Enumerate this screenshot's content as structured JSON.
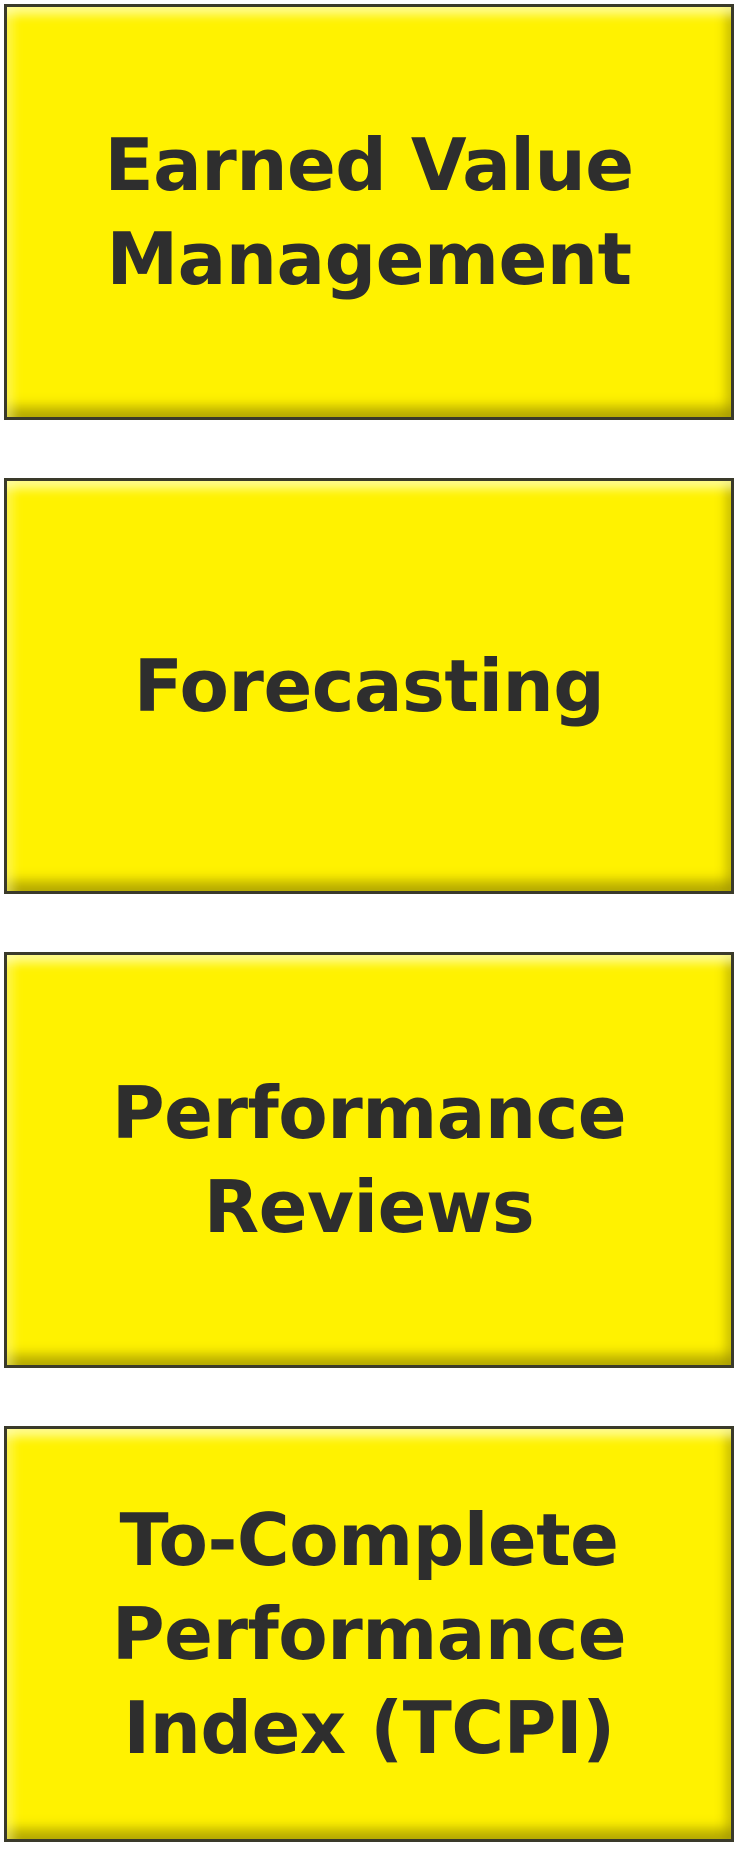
{
  "boxes": [
    {
      "label": "Earned Value\nManagement"
    },
    {
      "label": "Forecasting"
    },
    {
      "label": "Performance\nReviews"
    },
    {
      "label": "To-Complete\nPerformance\nIndex (TCPI)"
    }
  ],
  "colors": {
    "box_fill": "#fff200",
    "box_border": "#3a3a2a",
    "text": "#2e2e2e",
    "background": "#ffffff"
  }
}
